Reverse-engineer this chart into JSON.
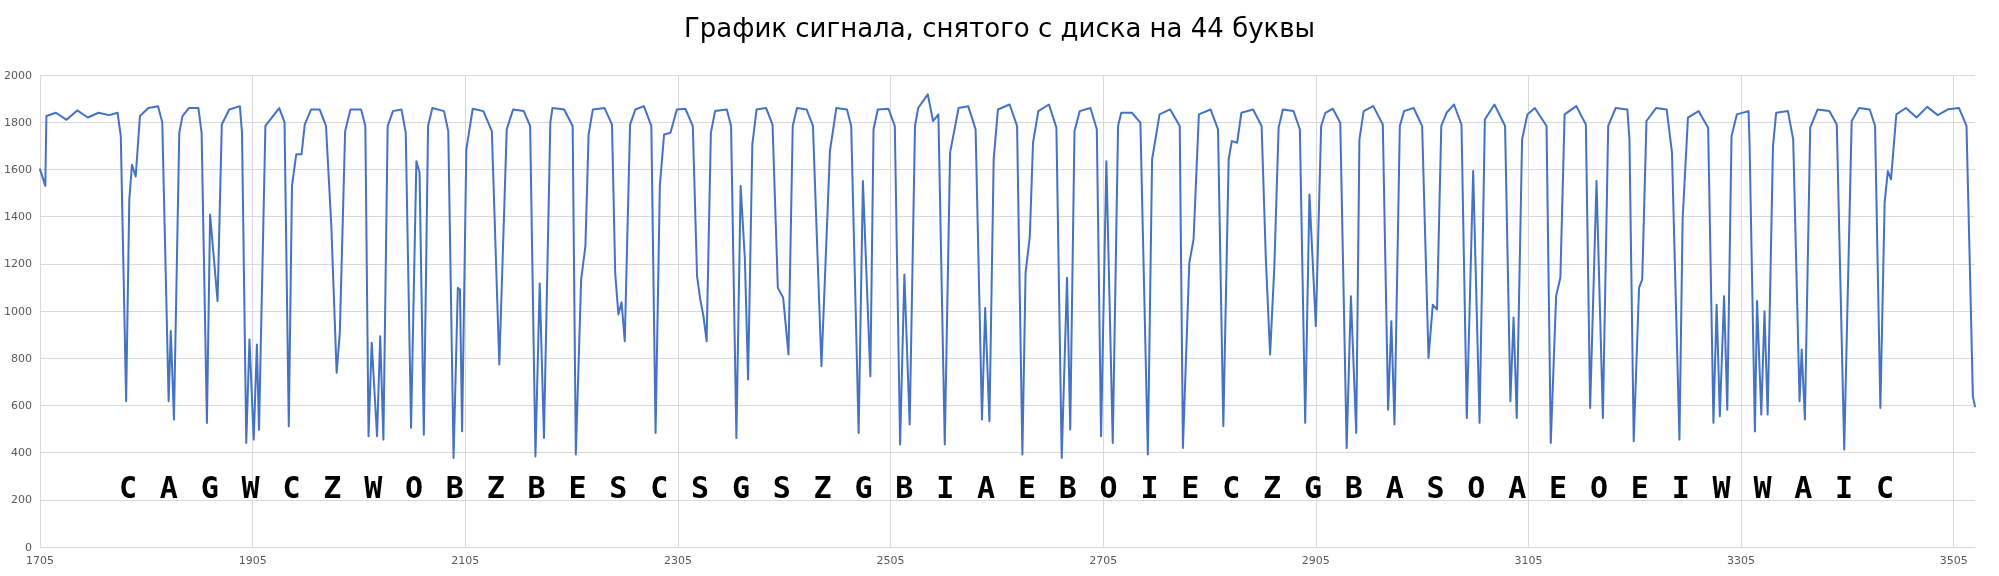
{
  "chart_data": {
    "type": "line",
    "title": "График сигнала, снятого с диска на 44 буквы",
    "x": [
      1705,
      1710,
      1711,
      1720,
      1730,
      1740,
      1750,
      1760,
      1770,
      1778,
      1781,
      1786,
      1789,
      1791.5,
      1795,
      1799,
      1807,
      1816,
      1820,
      1826,
      1828,
      1831,
      1836,
      1839,
      1845,
      1854,
      1857,
      1862,
      1865,
      1872,
      1876,
      1883,
      1893,
      1895,
      1899,
      1902,
      1906,
      1909,
      1911,
      1917,
      1930,
      1935,
      1939,
      1942,
      1946,
      1951,
      1954,
      1960,
      1968,
      1974,
      1979,
      1984,
      1987,
      1992,
      1997,
      2007,
      2011,
      2014,
      2017,
      2022,
      2025,
      2028,
      2032,
      2037,
      2045,
      2049,
      2054,
      2059,
      2062,
      2066,
      2070,
      2074,
      2085,
      2089,
      2094,
      2098,
      2100,
      2102,
      2106,
      2112,
      2122,
      2130,
      2137,
      2144,
      2150,
      2160,
      2166,
      2171,
      2175,
      2179,
      2185,
      2187,
      2198,
      2206,
      2209,
      2214,
      2218,
      2221,
      2225,
      2236,
      2243,
      2246,
      2249,
      2252,
      2255,
      2260,
      2265,
      2273,
      2280,
      2284,
      2288,
      2292,
      2298,
      2304,
      2312,
      2319,
      2323,
      2326,
      2329,
      2332,
      2336,
      2340,
      2351,
      2355,
      2360,
      2364,
      2368,
      2371,
      2375,
      2379,
      2388,
      2394,
      2399,
      2404,
      2409,
      2413,
      2417,
      2426,
      2432,
      2440,
      2448,
      2454,
      2464,
      2468,
      2475,
      2479,
      2486,
      2489,
      2493,
      2503,
      2509,
      2514,
      2518,
      2523,
      2528,
      2531,
      2540,
      2545,
      2550,
      2556,
      2561,
      2569,
      2578,
      2585,
      2591,
      2594,
      2598,
      2602,
      2606,
      2617,
      2624,
      2629,
      2632,
      2636,
      2639,
      2644,
      2654,
      2661,
      2666,
      2671,
      2674,
      2678,
      2683,
      2693,
      2699,
      2703,
      2708,
      2714,
      2719,
      2722,
      2732,
      2740,
      2747,
      2751,
      2758,
      2768,
      2777,
      2780,
      2786,
      2790,
      2795,
      2806,
      2813,
      2818,
      2823,
      2826,
      2831,
      2835,
      2846,
      2854,
      2858,
      2862,
      2866,
      2870,
      2874,
      2884,
      2890,
      2895,
      2899,
      2905,
      2910,
      2914,
      2921,
      2928,
      2934,
      2938,
      2943,
      2946,
      2950,
      2959,
      2968,
      2973,
      2976,
      2979,
      2984,
      2988,
      2997,
      3005,
      3011,
      3015,
      3019,
      3023,
      3028,
      3035,
      3042,
      3047,
      3053,
      3059,
      3064,
      3073,
      3083,
      3088,
      3091,
      3094,
      3099,
      3104,
      3111,
      3122,
      3126,
      3131,
      3135,
      3139,
      3150,
      3159,
      3163,
      3169,
      3175,
      3180,
      3187,
      3198,
      3200,
      3204,
      3209,
      3212,
      3216,
      3225,
      3235,
      3240,
      3247,
      3250,
      3255,
      3265,
      3274,
      3279,
      3282,
      3285,
      3289,
      3292,
      3296,
      3301,
      3312,
      3313,
      3318,
      3320,
      3324,
      3327,
      3330,
      3335,
      3338,
      3349,
      3354,
      3360,
      3362,
      3365,
      3370,
      3377,
      3388,
      3395,
      3402,
      3409,
      3416,
      3426,
      3431,
      3436,
      3440,
      3443,
      3446,
      3451,
      3460,
      3470,
      3480,
      3490,
      3500,
      3510,
      3517,
      3520,
      3523,
      3525
    ],
    "series": [
      {
        "color": "#4472c4",
        "values": [
          1600,
          1530,
          1826,
          1840,
          1810,
          1850,
          1820,
          1840,
          1830,
          1840,
          1740,
          618,
          1473,
          1620,
          1570,
          1826,
          1860,
          1868,
          1800,
          618,
          915,
          540,
          1755,
          1826,
          1860,
          1860,
          1755,
          525,
          1409,
          1042,
          1790,
          1854,
          1868,
          1755,
          441,
          879,
          455,
          858,
          497,
          1784,
          1860,
          1800,
          512,
          1530,
          1664,
          1664,
          1790,
          1854,
          1854,
          1784,
          1360,
          738,
          907,
          1762,
          1854,
          1854,
          1784,
          469,
          865,
          469,
          893,
          455,
          1784,
          1847,
          1854,
          1755,
          505,
          1635,
          1586,
          476,
          1784,
          1860,
          1847,
          1762,
          377,
          1098,
          1091,
          490,
          1685,
          1857,
          1847,
          1762,
          773,
          1770,
          1854,
          1847,
          1784,
          384,
          1117,
          462,
          1798,
          1860,
          1854,
          1784,
          392,
          1134,
          1275,
          1748,
          1854,
          1860,
          1790,
          1162,
          985,
          1037,
          872,
          1790,
          1854,
          1868,
          1784,
          483,
          1530,
          1748,
          1755,
          1854,
          1857,
          1784,
          1148,
          1049,
          978,
          872,
          1755,
          1847,
          1854,
          1784,
          462,
          1530,
          1219,
          710,
          1706,
          1854,
          1860,
          1790,
          1098,
          1056,
          816,
          1784,
          1860,
          1854,
          1784,
          766,
          1678,
          1860,
          1854,
          1784,
          483,
          1551,
          724,
          1770,
          1854,
          1857,
          1784,
          434,
          1155,
          519,
          1784,
          1860,
          1918,
          1805,
          1833,
          434,
          1671,
          1860,
          1868,
          1770,
          540,
          1013,
          533,
          1642,
          1854,
          1875,
          1784,
          392,
          1162,
          1317,
          1713,
          1847,
          1875,
          1777,
          377,
          1141,
          498,
          1762,
          1847,
          1860,
          1770,
          469,
          1635,
          441,
          1784,
          1840,
          1840,
          1798,
          392,
          1642,
          1833,
          1854,
          1784,
          420,
          1204,
          1303,
          1833,
          1854,
          1770,
          512,
          1642,
          1720,
          1713,
          1840,
          1854,
          1784,
          1219,
          816,
          1190,
          1777,
          1854,
          1847,
          1770,
          526,
          1494,
          936,
          1784,
          1840,
          1857,
          1798,
          420,
          1063,
          483,
          1727,
          1847,
          1868,
          1790,
          582,
          957,
          519,
          1784,
          1847,
          1860,
          1784,
          801,
          1027,
          1006,
          1784,
          1840,
          1875,
          1790,
          547,
          1593,
          526,
          1812,
          1875,
          1784,
          618,
          972,
          547,
          1727,
          1833,
          1860,
          1784,
          441,
          1063,
          1141,
          1833,
          1868,
          1790,
          589,
          1551,
          547,
          1784,
          1860,
          1854,
          1727,
          448,
          1098,
          1134,
          1805,
          1860,
          1854,
          1671,
          455,
          1388,
          1819,
          1847,
          1777,
          526,
          1027,
          554,
          1063,
          582,
          1741,
          1833,
          1847,
          1699,
          490,
          1042,
          561,
          999,
          561,
          1699,
          1840,
          1847,
          1727,
          618,
          837,
          540,
          1777,
          1854,
          1847,
          1790,
          413,
          1805,
          1860,
          1854,
          1784,
          589,
          1459,
          1593,
          1558,
          1833,
          1860,
          1820,
          1865,
          1830,
          1855,
          1860,
          1784,
          1219,
          638,
          596
        ]
      }
    ],
    "xlim": [
      1705,
      3525
    ],
    "xticks": [
      1705,
      1905,
      2105,
      2305,
      2505,
      2705,
      2905,
      3105,
      3305,
      3505
    ],
    "ylim": [
      0,
      2000
    ],
    "yticks": [
      0,
      200,
      400,
      600,
      800,
      1000,
      1200,
      1400,
      1600,
      1800,
      2000
    ],
    "grid": true,
    "marker": "none",
    "line_style": "solid",
    "annotations": [
      "C",
      "A",
      "G",
      "W",
      "C",
      "Z",
      "W",
      "O",
      "B",
      "Z",
      "B",
      "E",
      "S",
      "C",
      "S",
      "G",
      "S",
      "Z",
      "G",
      "B",
      "I",
      "A",
      "E",
      "B",
      "O",
      "I",
      "E",
      "C",
      "Z",
      "G",
      "B",
      "A",
      "S",
      "O",
      "A",
      "E",
      "O",
      "E",
      "I",
      "W",
      "W",
      "A",
      "I",
      "C"
    ]
  }
}
